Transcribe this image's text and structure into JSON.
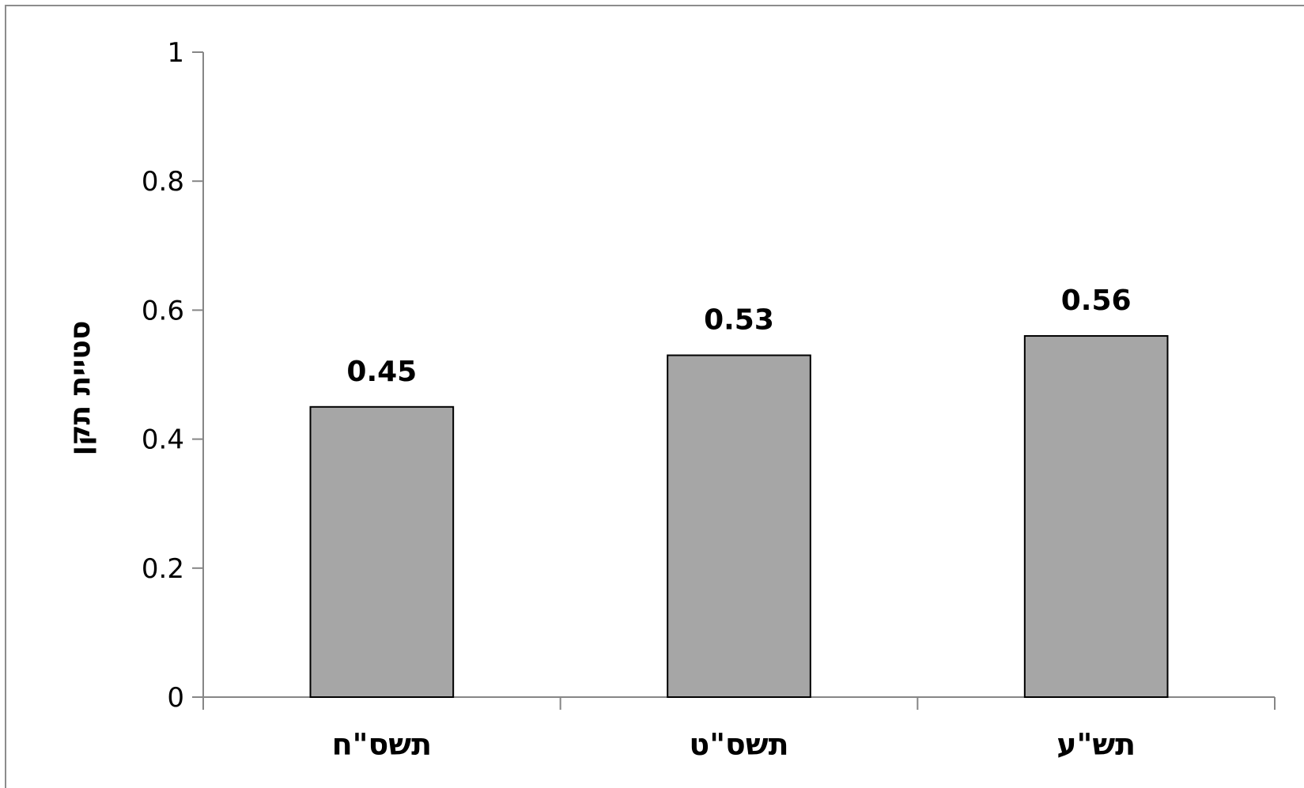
{
  "chart_data": {
    "type": "bar",
    "categories": [
      "תשס\"ח",
      "תשס\"ט",
      "תש\"ע"
    ],
    "values": [
      0.45,
      0.53,
      0.56
    ],
    "data_labels": [
      "0.45",
      "0.53",
      "0.56"
    ],
    "title": "",
    "xlabel": "",
    "ylabel": "סטיית תקן",
    "ylim": [
      0,
      1
    ],
    "yticks": [
      0,
      0.2,
      0.4,
      0.6,
      0.8,
      1
    ],
    "ytick_labels": [
      "0",
      "0.2",
      "0.4",
      "0.6",
      "0.8",
      "1"
    ],
    "grid": false,
    "legend": "none",
    "colors": {
      "bar_fill": "#a6a6a6",
      "bar_stroke": "#000000",
      "axis": "#868686",
      "frame": "#8c8c8c",
      "text": "#000000"
    }
  }
}
